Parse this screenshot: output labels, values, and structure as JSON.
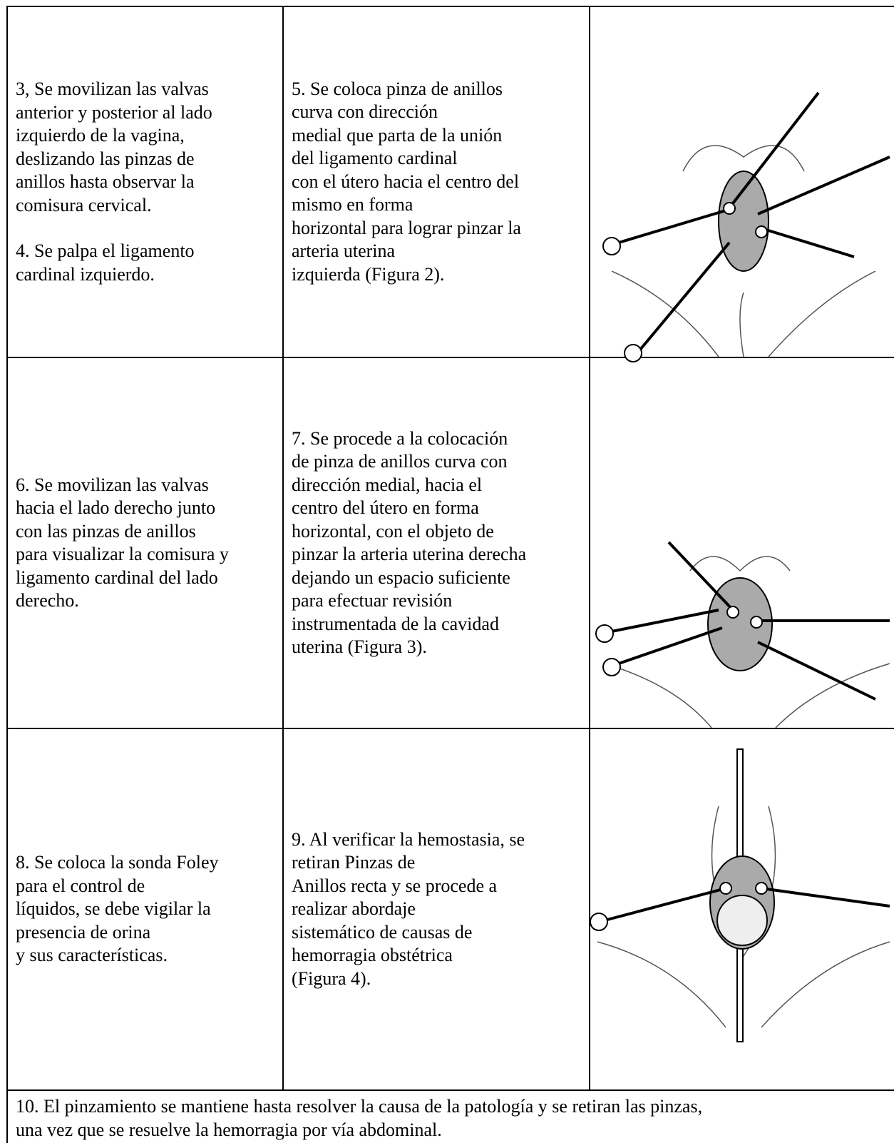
{
  "table": {
    "rows": [
      [
        [
          [
            "3, Se movilizan las valvas",
            "anterior y posterior al lado",
            "izquierdo de la vagina,",
            "deslizando las pinzas de",
            "anillos hasta observar la",
            "comisura cervical."
          ],
          [
            "4. Se palpa el ligamento",
            "cardinal izquierdo."
          ]
        ],
        [
          [
            "5. Se coloca pinza de anillos",
            "curva con dirección",
            "medial que parta de la unión",
            "del ligamento cardinal",
            "con el útero hacia el centro del",
            "mismo en forma",
            "horizontal para lograr pinzar la",
            "arteria uterina",
            "izquierda (Figura 2)."
          ]
        ]
      ],
      [
        [
          [
            "6. Se movilizan las valvas",
            "hacia el lado derecho junto",
            "con las pinzas de anillos",
            "para visualizar la comisura y",
            "ligamento cardinal del lado",
            "derecho."
          ]
        ],
        [
          [
            "7. Se procede a la colocación",
            "de pinza de anillos curva con",
            "dirección medial, hacia el",
            "centro del útero en forma",
            "horizontal, con el objeto de",
            "pinzar la arteria uterina derecha",
            "dejando un espacio suficiente",
            "para efectuar revisión",
            "instrumentada de la cavidad",
            "uterina (Figura 3)."
          ]
        ]
      ],
      [
        [
          [
            "8. Se coloca la sonda Foley",
            "para el control de",
            "líquidos, se debe vigilar la",
            "presencia de orina",
            "y sus características."
          ]
        ],
        [
          [
            "9. Al verificar la hemostasia, se",
            "retiran Pinzas de",
            "Anillos recta y se procede a",
            "realizar abordaje",
            "sistemático de causas de",
            "hemorragia obstétrica",
            "(Figura 4)."
          ]
        ]
      ]
    ],
    "footer": [
      [
        "10. El pinzamiento se mantiene hasta resolver la causa de la patología y se retiran las pinzas,",
        "una vez que se resuelve la hemorragia por vía abdominal."
      ]
    ]
  }
}
